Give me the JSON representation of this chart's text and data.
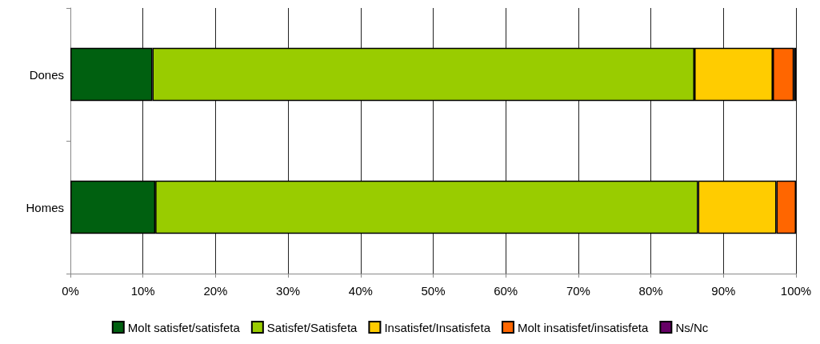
{
  "chart_data": {
    "type": "bar",
    "orientation": "horizontal",
    "stacked": true,
    "categories": [
      "Dones",
      "Homes"
    ],
    "series": [
      {
        "name": "Molt satisfet/satisfeta",
        "color": "#006010",
        "values": [
          11.3,
          11.7
        ]
      },
      {
        "name": "Satisfet/Satisfeta",
        "color": "#99cc00",
        "values": [
          74.7,
          74.8
        ]
      },
      {
        "name": "Insatisfet/Insatisfeta",
        "color": "#ffcc00",
        "values": [
          10.8,
          10.8
        ]
      },
      {
        "name": "Molt insatisfet/insatisfeta",
        "color": "#ff6600",
        "values": [
          2.9,
          2.7
        ]
      },
      {
        "name": "Ns/Nc",
        "color": "#660066",
        "values": [
          0.3,
          null
        ]
      }
    ],
    "xlim": [
      0,
      100
    ],
    "xticks": [
      {
        "value": 0,
        "label": "0%"
      },
      {
        "value": 10,
        "label": "10%"
      },
      {
        "value": 20,
        "label": "20%"
      },
      {
        "value": 30,
        "label": "30%"
      },
      {
        "value": 40,
        "label": "40%"
      },
      {
        "value": 50,
        "label": "50%"
      },
      {
        "value": 60,
        "label": "60%"
      },
      {
        "value": 70,
        "label": "70%"
      },
      {
        "value": 80,
        "label": "80%"
      },
      {
        "value": 90,
        "label": "90%"
      },
      {
        "value": 100,
        "label": "100%"
      }
    ],
    "grid": "x",
    "legend": "bottom"
  }
}
